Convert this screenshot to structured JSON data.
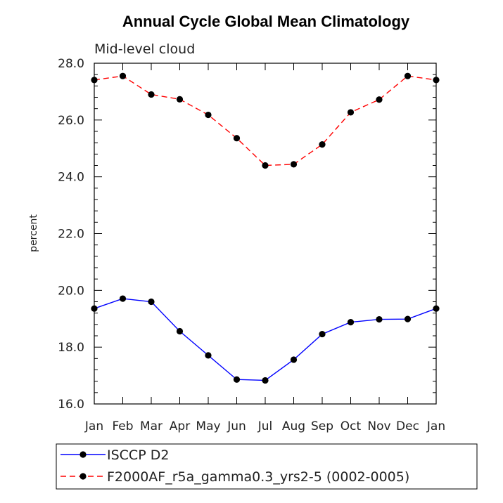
{
  "chart_data": {
    "type": "line",
    "title": "Annual Cycle Global Mean Climatology",
    "subtitle": "Mid-level cloud",
    "xlabel": "",
    "ylabel": "percent",
    "ylim": [
      16.0,
      28.0
    ],
    "yticks": [
      "16.0",
      "18.0",
      "20.0",
      "22.0",
      "24.0",
      "26.0",
      "28.0"
    ],
    "categories": [
      "Jan",
      "Feb",
      "Mar",
      "Apr",
      "May",
      "Jun",
      "Jul",
      "Aug",
      "Sep",
      "Oct",
      "Nov",
      "Dec",
      "Jan"
    ],
    "series": [
      {
        "name": "ISCCP D2",
        "color": "#0000ff",
        "dash": "solid",
        "values": [
          19.36,
          19.71,
          19.6,
          18.56,
          17.71,
          16.86,
          16.83,
          17.56,
          18.46,
          18.88,
          18.98,
          18.99,
          19.36
        ]
      },
      {
        "name": "F2000AF_r5a_gamma0.3_yrs2-5 (0002-0005)",
        "color": "#ff0000",
        "dash": "dashed",
        "values": [
          27.41,
          27.55,
          26.9,
          26.73,
          26.18,
          25.36,
          24.4,
          24.44,
          25.14,
          26.27,
          26.72,
          27.55,
          27.41
        ]
      }
    ],
    "legend_position": "bottom"
  }
}
